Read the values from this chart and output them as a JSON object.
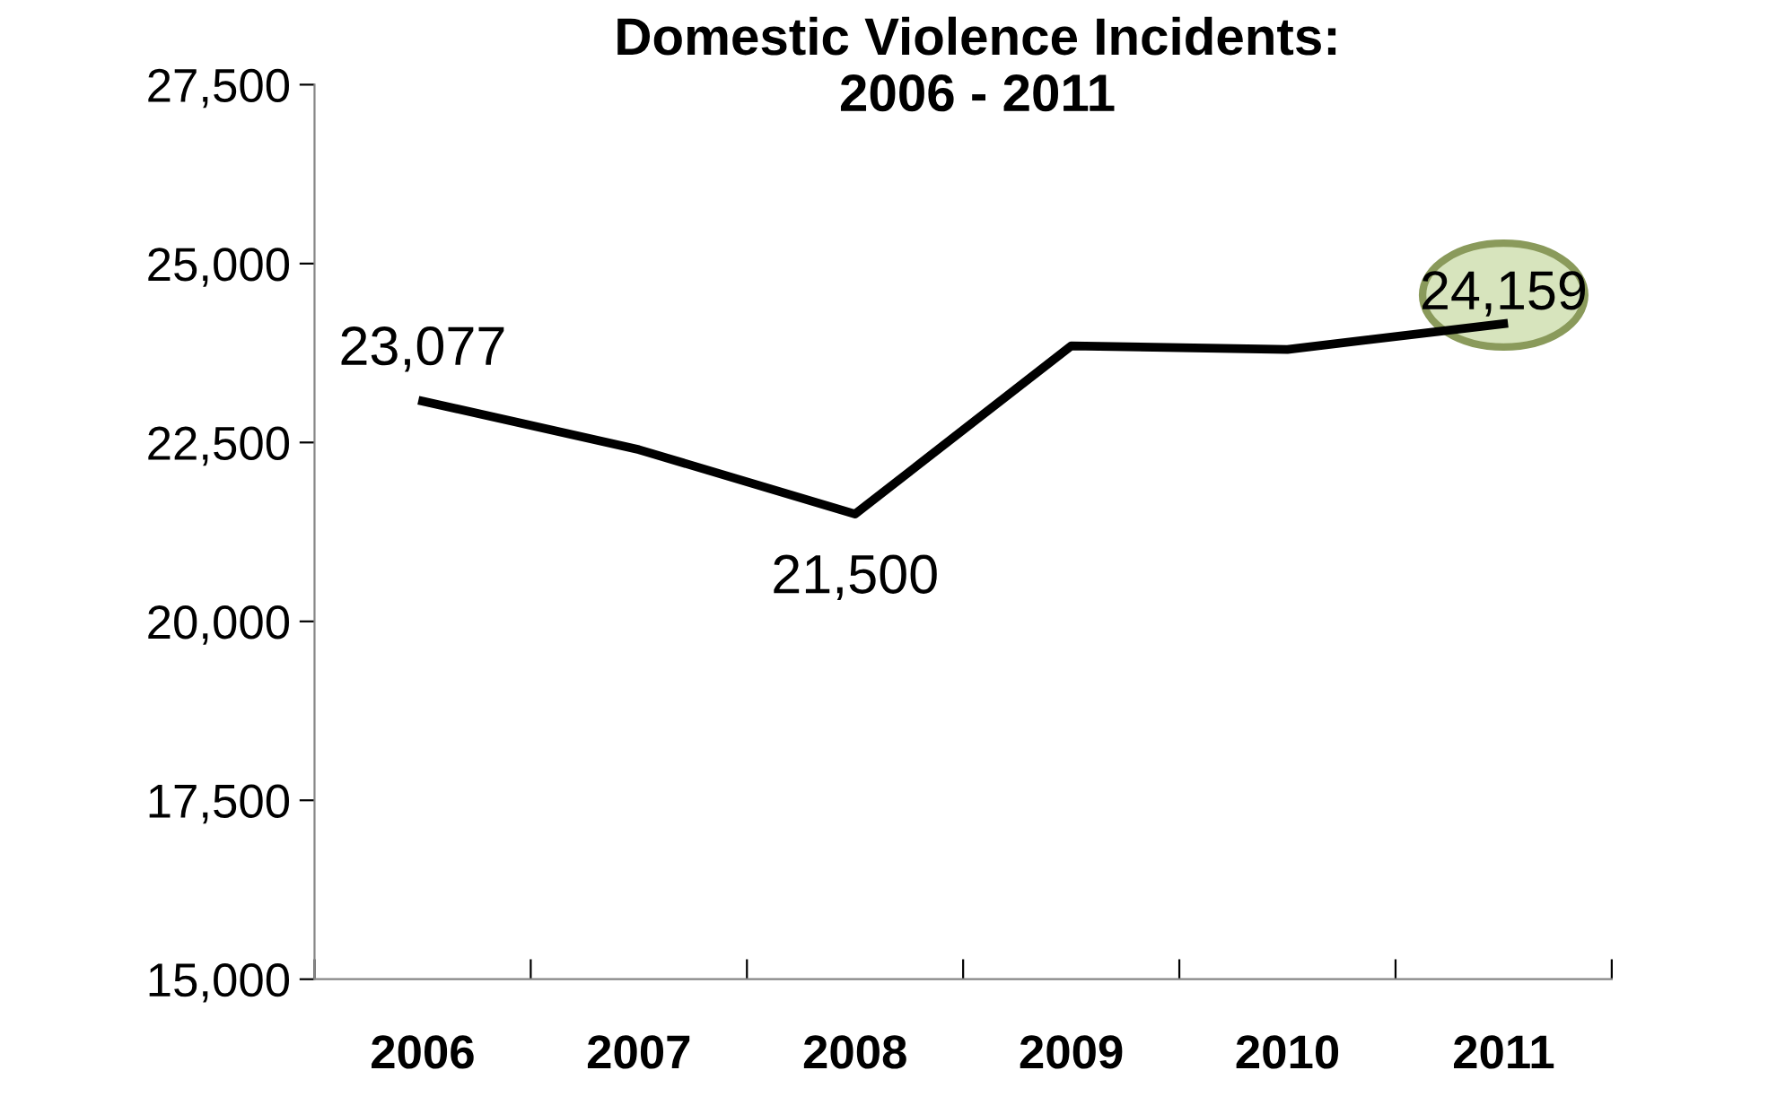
{
  "chart_data": {
    "type": "line",
    "title": "Domestic Violence Incidents:\n2006 - 2011",
    "categories": [
      "2006",
      "2007",
      "2008",
      "2009",
      "2010",
      "2011"
    ],
    "series": [
      {
        "color": "#000000",
        "values": [
          23077,
          22400,
          21500,
          23850,
          23800,
          24159
        ],
        "value_labels": [
          "23,077",
          null,
          "21,500",
          null,
          null,
          "24,159"
        ]
      }
    ],
    "ylim": [
      15000,
      27500
    ],
    "yticks": [
      {
        "value": 15000,
        "label": "15,000"
      },
      {
        "value": 17500,
        "label": "17,500"
      },
      {
        "value": 20000,
        "label": "20,000"
      },
      {
        "value": 22500,
        "label": "22,500"
      },
      {
        "value": 25000,
        "label": "25,000"
      },
      {
        "value": 27500,
        "label": "27,500"
      }
    ],
    "grid": false,
    "legend": false,
    "marker": "none",
    "line_style": "solid"
  }
}
